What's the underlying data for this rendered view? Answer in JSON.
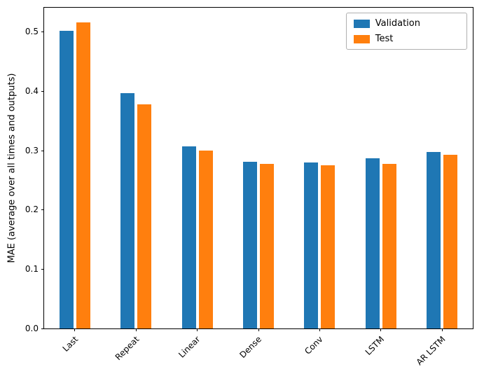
{
  "chart_data": {
    "type": "bar",
    "title": "",
    "xlabel": "",
    "ylabel": "MAE (average over all times and outputs)",
    "categories": [
      "Last",
      "Repeat",
      "Linear",
      "Dense",
      "Conv",
      "LSTM",
      "AR LSTM"
    ],
    "series": [
      {
        "name": "Validation",
        "color": "#1f77b4",
        "values": [
          0.501,
          0.396,
          0.306,
          0.281,
          0.28,
          0.286,
          0.297
        ]
      },
      {
        "name": "Test",
        "color": "#ff7f0e",
        "values": [
          0.515,
          0.377,
          0.299,
          0.277,
          0.275,
          0.277,
          0.292
        ]
      }
    ],
    "ylim": [
      0,
      0.54
    ],
    "yticks": [
      0.0,
      0.1,
      0.2,
      0.3,
      0.4,
      0.5
    ],
    "grid": false,
    "legend_position": "upper right",
    "background_color": "#ffffff",
    "axis_color": "#000000"
  }
}
